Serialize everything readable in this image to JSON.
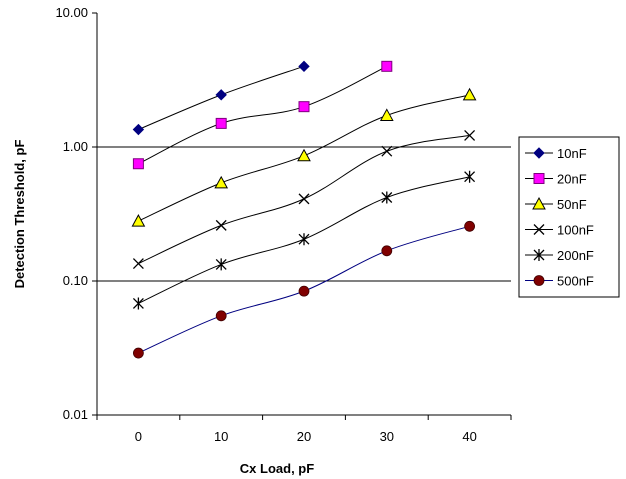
{
  "chart_data": {
    "type": "line",
    "title": "",
    "xlabel": "Cx Load, pF",
    "ylabel": "Detection Threshold, pF",
    "x_scale": "linear",
    "y_scale": "log",
    "xlim": [
      -5,
      45
    ],
    "ylim": [
      0.01,
      10
    ],
    "x_ticks": [
      0,
      10,
      20,
      30,
      40
    ],
    "x_tick_labels": [
      "0",
      "10",
      "20",
      "30",
      "40"
    ],
    "y_ticks": [
      0.01,
      0.1,
      1,
      10
    ],
    "y_tick_labels": [
      "0.01",
      "0.10",
      "1.00",
      "10.00"
    ],
    "gridlines_y": [
      0.1,
      1
    ],
    "legend_position": "right",
    "series": [
      {
        "name": "10nF",
        "marker": "diamond",
        "color": "#000080",
        "line_color": "#000000",
        "x": [
          0,
          10,
          20
        ],
        "y": [
          1.35,
          2.45,
          4.0
        ]
      },
      {
        "name": "20nF",
        "marker": "square",
        "color": "#ff00ff",
        "line_color": "#000000",
        "x": [
          0,
          10,
          20,
          30
        ],
        "y": [
          0.75,
          1.5,
          2.0,
          4.0
        ]
      },
      {
        "name": "50nF",
        "marker": "triangle",
        "color": "#ffff00",
        "line_color": "#000000",
        "x": [
          0,
          10,
          20,
          30,
          40
        ],
        "y": [
          0.28,
          0.54,
          0.86,
          1.72,
          2.45
        ]
      },
      {
        "name": "100nF",
        "marker": "x",
        "color": "#000000",
        "line_color": "#000000",
        "x": [
          0,
          10,
          20,
          30,
          40
        ],
        "y": [
          0.135,
          0.26,
          0.41,
          0.93,
          1.22
        ]
      },
      {
        "name": "200nF",
        "marker": "star",
        "color": "#000000",
        "line_color": "#000000",
        "x": [
          0,
          10,
          20,
          30,
          40
        ],
        "y": [
          0.068,
          0.133,
          0.205,
          0.42,
          0.6
        ]
      },
      {
        "name": "500nF",
        "marker": "circle",
        "color": "#800000",
        "line_color": "#000080",
        "x": [
          0,
          10,
          20,
          30,
          40
        ],
        "y": [
          0.029,
          0.055,
          0.084,
          0.168,
          0.256
        ]
      }
    ]
  }
}
